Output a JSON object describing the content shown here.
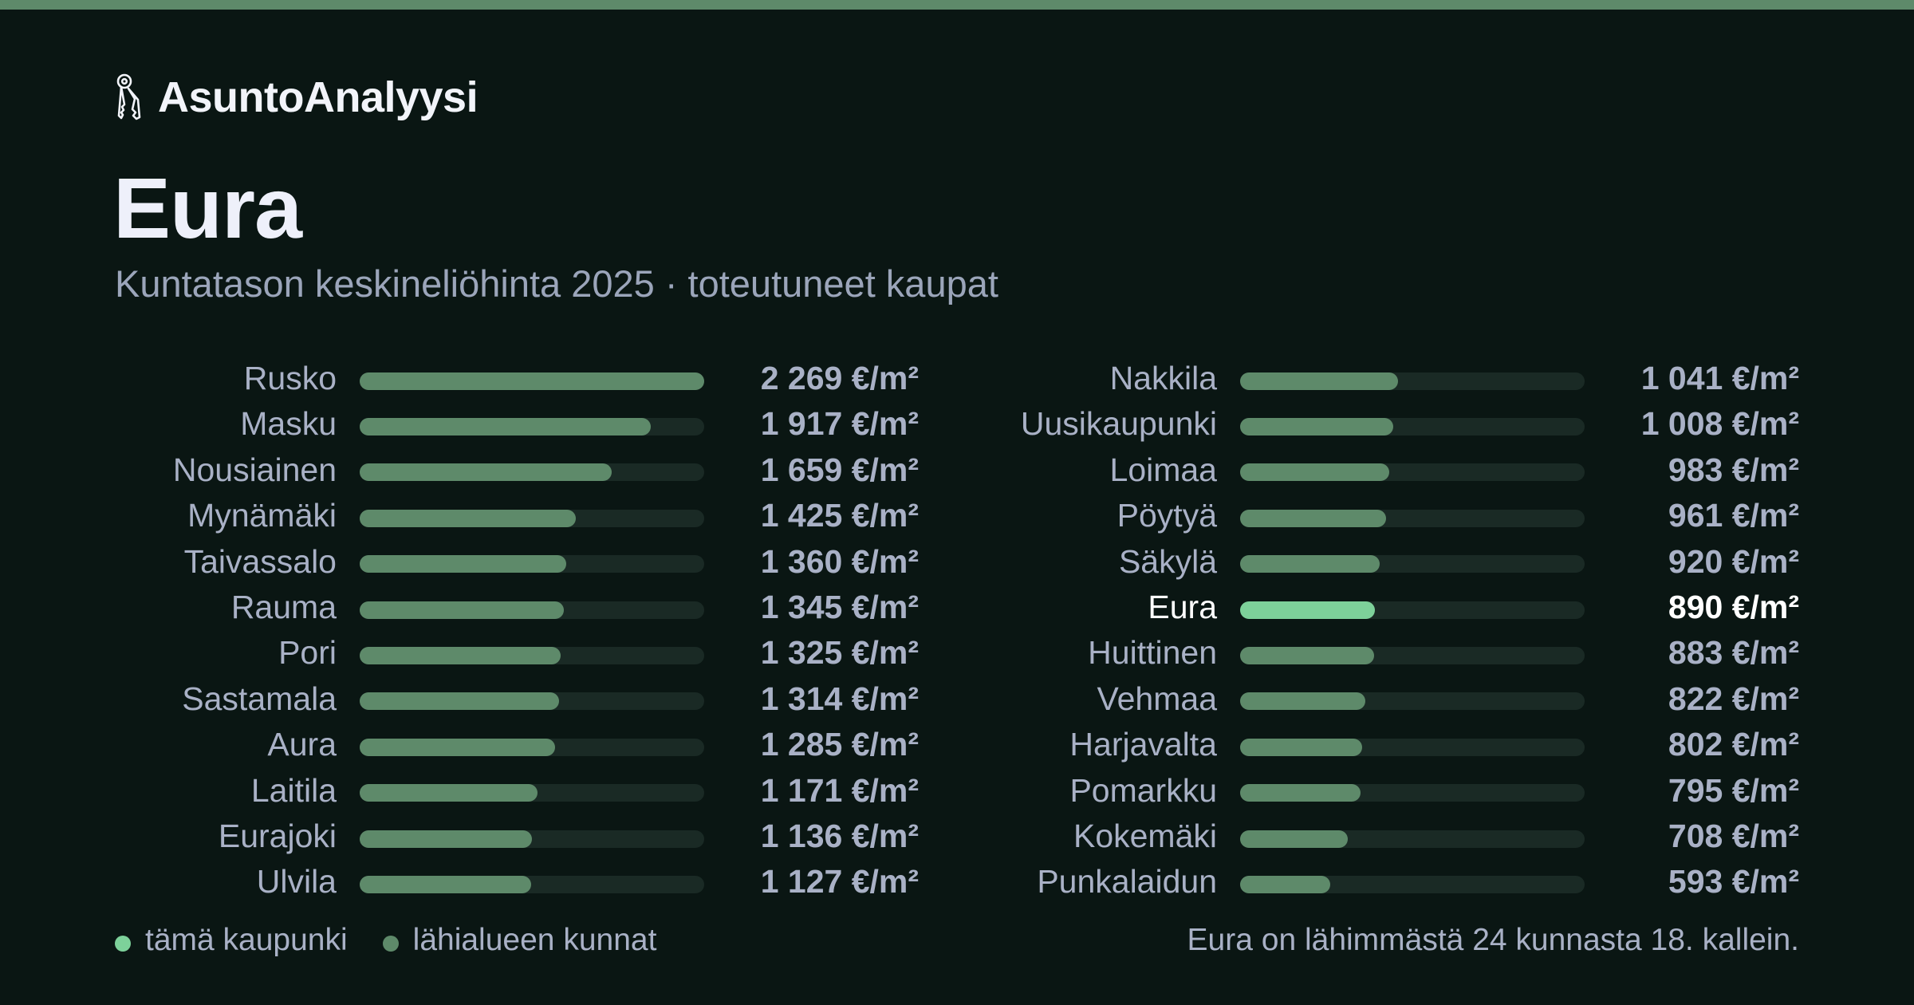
{
  "brand": {
    "name": "AsuntoAnalyysi",
    "icon": "keys-icon"
  },
  "header": {
    "title": "Eura",
    "subtitle": "Kuntatason keskineliöhinta 2025 · toteutuneet kaupat"
  },
  "colors": {
    "accent": "#7dd19a",
    "bar": "#5e8a6a",
    "track": "#1a2a25",
    "background": "#0a1613"
  },
  "chart_data": {
    "type": "bar",
    "orientation": "horizontal",
    "title": "Eura",
    "subtitle": "Kuntatason keskineliöhinta 2025 · toteutuneet kaupat",
    "xlim": [
      0,
      2269
    ],
    "highlight": "Eura",
    "categories": [
      "Rusko",
      "Masku",
      "Nousiainen",
      "Mynämäki",
      "Taivassalo",
      "Rauma",
      "Pori",
      "Sastamala",
      "Aura",
      "Laitila",
      "Eurajoki",
      "Ulvila",
      "Nakkila",
      "Uusikaupunki",
      "Loimaa",
      "Pöytyä",
      "Säkylä",
      "Eura",
      "Huittinen",
      "Vehmaa",
      "Harjavalta",
      "Pomarkku",
      "Kokemäki",
      "Punkalaidun"
    ],
    "values": [
      2269,
      1917,
      1659,
      1425,
      1360,
      1345,
      1325,
      1314,
      1285,
      1171,
      1136,
      1127,
      1041,
      1008,
      983,
      961,
      920,
      890,
      883,
      822,
      802,
      795,
      708,
      593
    ],
    "labels": [
      "2 269 €/m²",
      "1 917 €/m²",
      "1 659 €/m²",
      "1 425 €/m²",
      "1 360 €/m²",
      "1 345 €/m²",
      "1 325 €/m²",
      "1 314 €/m²",
      "1 285 €/m²",
      "1 171 €/m²",
      "1 136 €/m²",
      "1 127 €/m²",
      "1 041 €/m²",
      "1 008 €/m²",
      "983 €/m²",
      "961 €/m²",
      "920 €/m²",
      "890 €/m²",
      "883 €/m²",
      "822 €/m²",
      "802 €/m²",
      "795 €/m²",
      "708 €/m²",
      "593 €/m²"
    ],
    "legend": [
      {
        "label": "tämä kaupunki",
        "color": "#7dd19a"
      },
      {
        "label": "lähialueen kunnat",
        "color": "#5e8a6a"
      }
    ]
  },
  "footer": {
    "rank_note": "Eura on lähimmästä 24 kunnasta 18. kallein."
  }
}
